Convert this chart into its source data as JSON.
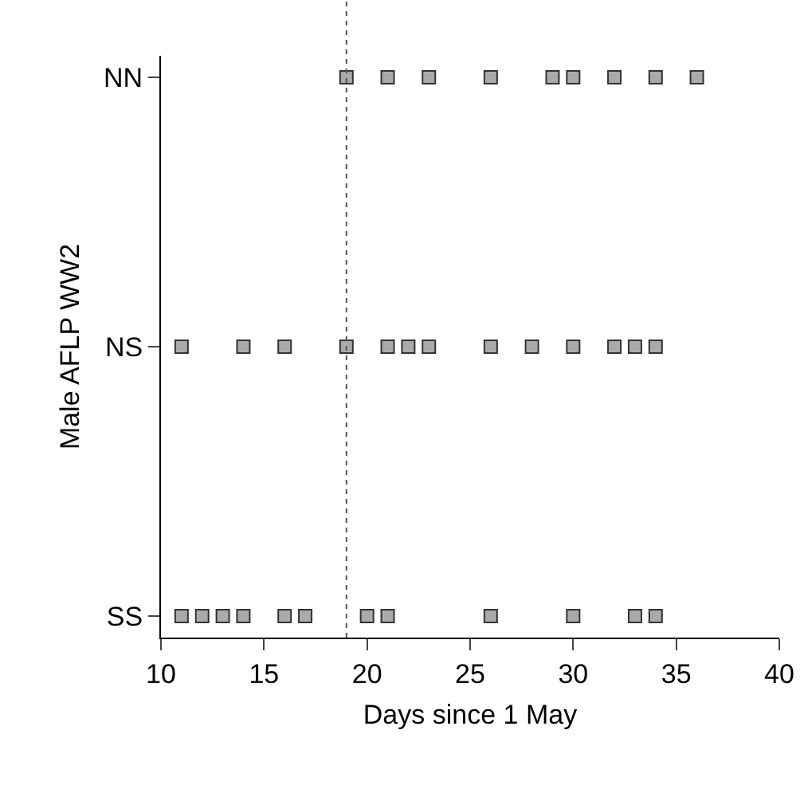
{
  "chart_data": {
    "type": "scatter",
    "orientation": "horizontal",
    "xlabel": "Days since 1 May",
    "ylabel": "Male AFLP WW2",
    "categories": [
      "NN",
      "NS",
      "SS"
    ],
    "series": [
      {
        "color": "#aaaaaa",
        "x": [
          "NN",
          "NN",
          "NN",
          "NN",
          "NN",
          "NN",
          "NN",
          "NN",
          "NN",
          "NS",
          "NS",
          "NS",
          "NS",
          "NS",
          "NS",
          "NS",
          "NS",
          "NS",
          "NS",
          "NS",
          "NS",
          "NS",
          "SS",
          "SS",
          "SS",
          "SS",
          "SS",
          "SS",
          "SS",
          "SS",
          "SS",
          "SS",
          "SS",
          "SS"
        ],
        "values": [
          19,
          21,
          23,
          26,
          29,
          30,
          32,
          34,
          36,
          11,
          14,
          16,
          19,
          21,
          22,
          23,
          26,
          28,
          30,
          32,
          33,
          34,
          11,
          12,
          13,
          14,
          16,
          17,
          20,
          21,
          26,
          30,
          33,
          34
        ]
      }
    ],
    "marker": "square",
    "xlim": [
      10,
      40
    ],
    "xticks": [
      10,
      15,
      20,
      25,
      30,
      35,
      40
    ],
    "ref_lines": [
      {
        "axis": "x",
        "value": 19,
        "line_style": "dotted",
        "color": "#555555"
      }
    ],
    "grid": false
  }
}
